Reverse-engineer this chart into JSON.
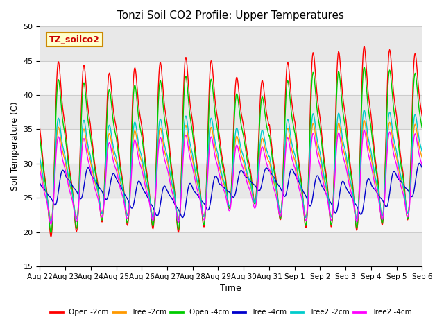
{
  "title": "Tonzi Soil CO2 Profile: Upper Temperatures",
  "ylabel": "Soil Temperature (C)",
  "xlabel": "Time",
  "ylim": [
    15,
    50
  ],
  "series_labels": [
    "Open -2cm",
    "Tree -2cm",
    "Open -4cm",
    "Tree -4cm",
    "Tree2 -2cm",
    "Tree2 -4cm"
  ],
  "series_colors": [
    "#ff0000",
    "#ff9900",
    "#00cc00",
    "#0000cc",
    "#00cccc",
    "#ff00ff"
  ],
  "xtick_labels": [
    "Aug 22",
    "Aug 23",
    "Aug 24",
    "Aug 25",
    "Aug 26",
    "Aug 27",
    "Aug 28",
    "Aug 29",
    "Aug 30",
    "Aug 31",
    "Sep 1",
    "Sep 2",
    "Sep 3",
    "Sep 4",
    "Sep 5",
    "Sep 6"
  ],
  "annotation_text": "TZ_soilco2",
  "annotation_bg": "#ffffcc",
  "annotation_border": "#cc8800",
  "annotation_text_color": "#cc0000",
  "grid_color": "#cccccc",
  "bg_color": "#e8e8e8",
  "band_colors": [
    "#e8e8e8",
    "#f5f5f5"
  ],
  "linewidth": 1.0,
  "yticks": [
    15,
    20,
    25,
    30,
    35,
    40,
    45,
    50
  ]
}
